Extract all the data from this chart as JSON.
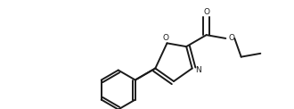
{
  "background_color": "#ffffff",
  "line_color": "#1a1a1a",
  "line_width": 1.4,
  "figsize": [
    3.3,
    1.22
  ],
  "dpi": 100,
  "xlim": [
    0,
    3.3
  ],
  "ylim": [
    0,
    1.22
  ]
}
